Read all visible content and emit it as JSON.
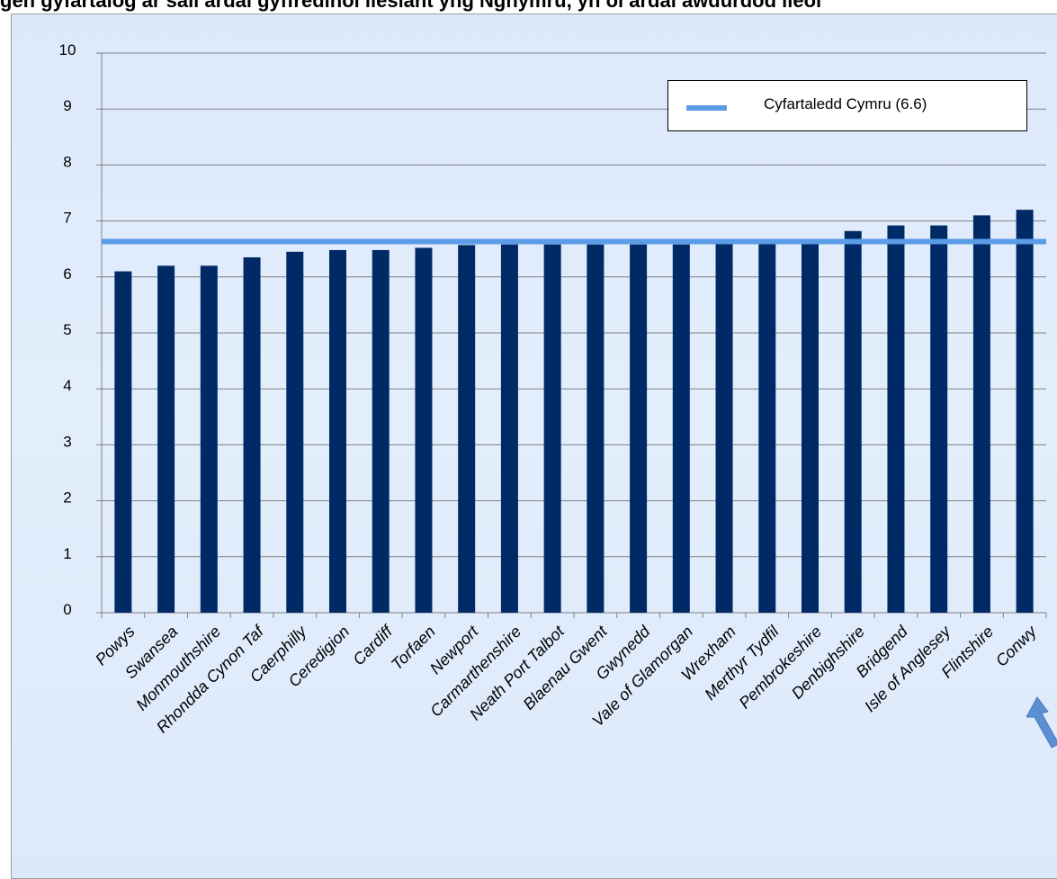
{
  "title": "gen gyfartalog ar sail ardal gyffredinol llesiant yng Nghymru, yn ôl ardal awdurdod lleol",
  "colors": {
    "bar": "#002a66",
    "average_line": "#5b9ce6",
    "arrow": "#5b8fd1"
  },
  "chart_data": {
    "type": "bar",
    "title": "",
    "xlabel": "",
    "ylabel": "",
    "ylim": [
      0,
      10
    ],
    "yticks": [
      0,
      1,
      2,
      3,
      4,
      5,
      6,
      7,
      8,
      9,
      10
    ],
    "grid": true,
    "legend_position": "top-right",
    "categories": [
      "Powys",
      "Swansea",
      "Monmouthshire",
      "Rhondda Cynon Taf",
      "Caerphilly",
      "Ceredigion",
      "Cardiff",
      "Torfaen",
      "Newport",
      "Carmarthenshire",
      "Neath Port Talbot",
      "Blaenau Gwent",
      "Gwynedd",
      "Vale of Glamorgan",
      "Wrexham",
      "Merthyr Tydfil",
      "Pembrokeshire",
      "Denbighshire",
      "Bridgend",
      "Isle of Anglesey",
      "Flintshire",
      "Conwy"
    ],
    "values": [
      6.1,
      6.2,
      6.2,
      6.35,
      6.45,
      6.48,
      6.48,
      6.52,
      6.57,
      6.58,
      6.58,
      6.58,
      6.58,
      6.58,
      6.59,
      6.6,
      6.65,
      6.82,
      6.92,
      6.92,
      7.1,
      7.2
    ],
    "reference_line": {
      "label": "Cyfartaledd Cymru (6.6)",
      "value": 6.6
    }
  }
}
